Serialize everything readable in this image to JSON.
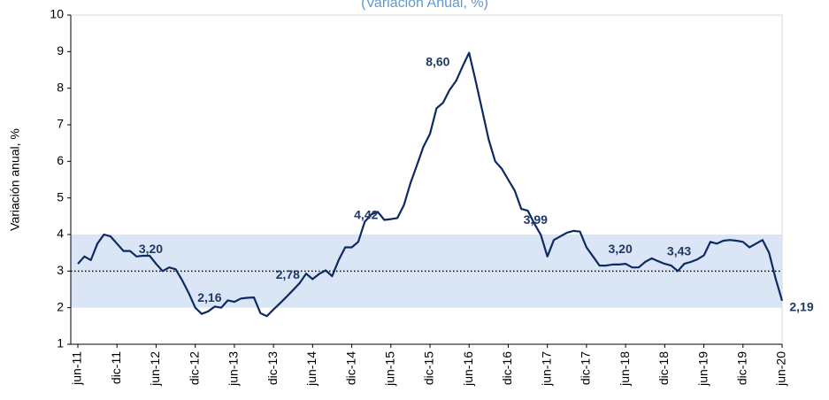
{
  "chart_data": {
    "type": "line",
    "title": "(Variación Anual, %)",
    "y_label": "Variación anual, %",
    "categories": [
      "jun-11",
      null,
      null,
      null,
      null,
      null,
      "dic-11",
      null,
      null,
      null,
      null,
      null,
      "jun-12",
      null,
      null,
      null,
      null,
      null,
      "dic-12",
      null,
      null,
      null,
      null,
      null,
      "jun-13",
      null,
      null,
      null,
      null,
      null,
      "dic-13",
      null,
      null,
      null,
      null,
      null,
      "jun-14",
      null,
      null,
      null,
      null,
      null,
      "dic-14",
      null,
      null,
      null,
      null,
      null,
      "jun-15",
      null,
      null,
      null,
      null,
      null,
      "dic-15",
      null,
      null,
      null,
      null,
      null,
      "jun-16",
      null,
      null,
      null,
      null,
      null,
      "dic-16",
      null,
      null,
      null,
      null,
      null,
      "jun-17",
      null,
      null,
      null,
      null,
      null,
      "dic-17",
      null,
      null,
      null,
      null,
      null,
      "jun-18",
      null,
      null,
      null,
      null,
      null,
      "dic-18",
      null,
      null,
      null,
      null,
      null,
      "jun-19",
      null,
      null,
      null,
      null,
      null,
      "dic-19",
      null,
      null,
      null,
      null,
      null,
      "jun-20"
    ],
    "series": [
      {
        "color": "#0d2a63",
        "values": [
          3.2,
          3.4,
          3.3,
          3.75,
          4.0,
          3.95,
          3.75,
          3.55,
          3.55,
          3.4,
          3.42,
          3.42,
          3.2,
          3.0,
          3.1,
          3.05,
          2.75,
          2.4,
          2.0,
          1.83,
          1.9,
          2.03,
          2.0,
          2.2,
          2.16,
          2.25,
          2.27,
          2.28,
          1.85,
          1.77,
          1.95,
          2.12,
          2.3,
          2.48,
          2.67,
          2.93,
          2.78,
          2.92,
          3.02,
          2.86,
          3.3,
          3.65,
          3.65,
          3.8,
          4.35,
          4.55,
          4.62,
          4.4,
          4.42,
          4.45,
          4.8,
          5.4,
          5.9,
          6.4,
          6.75,
          7.45,
          7.6,
          7.95,
          8.2,
          8.6,
          8.97,
          8.2,
          7.4,
          6.6,
          6.0,
          5.8,
          5.5,
          5.2,
          4.7,
          4.65,
          4.3,
          3.99,
          3.4,
          3.85,
          3.95,
          4.05,
          4.1,
          4.08,
          3.65,
          3.4,
          3.15,
          3.15,
          3.18,
          3.18,
          3.2,
          3.1,
          3.1,
          3.25,
          3.35,
          3.27,
          3.2,
          3.15,
          3.0,
          3.2,
          3.25,
          3.32,
          3.43,
          3.8,
          3.75,
          3.83,
          3.85,
          3.83,
          3.8,
          3.65,
          3.75,
          3.85,
          3.5,
          2.8,
          2.19
        ],
        "value_labels": [
          null,
          null,
          null,
          null,
          null,
          null,
          null,
          null,
          null,
          null,
          null,
          null,
          "3,20",
          null,
          null,
          null,
          null,
          null,
          null,
          null,
          null,
          null,
          null,
          null,
          "2,16",
          null,
          null,
          null,
          null,
          null,
          null,
          null,
          null,
          null,
          null,
          null,
          "2,78",
          null,
          null,
          null,
          null,
          null,
          null,
          null,
          null,
          null,
          null,
          null,
          "4,42",
          null,
          null,
          null,
          null,
          null,
          null,
          null,
          null,
          null,
          null,
          "8,60",
          null,
          null,
          null,
          null,
          null,
          null,
          null,
          null,
          null,
          null,
          null,
          "3,99",
          null,
          null,
          null,
          null,
          null,
          null,
          null,
          null,
          null,
          null,
          null,
          null,
          "3,20",
          null,
          null,
          null,
          null,
          null,
          null,
          null,
          null,
          null,
          null,
          null,
          "3,43",
          null,
          null,
          null,
          null,
          null,
          null,
          null,
          null,
          null,
          null,
          null,
          "2,19"
        ]
      }
    ],
    "band": {
      "from": 2,
      "to": 4,
      "color": "#dae6f5"
    },
    "reference_line": 3,
    "ylim": [
      1,
      10
    ],
    "yticks": [
      1,
      2,
      3,
      4,
      5,
      6,
      7,
      8,
      9,
      10
    ],
    "title_color": "#5b9bd5"
  }
}
